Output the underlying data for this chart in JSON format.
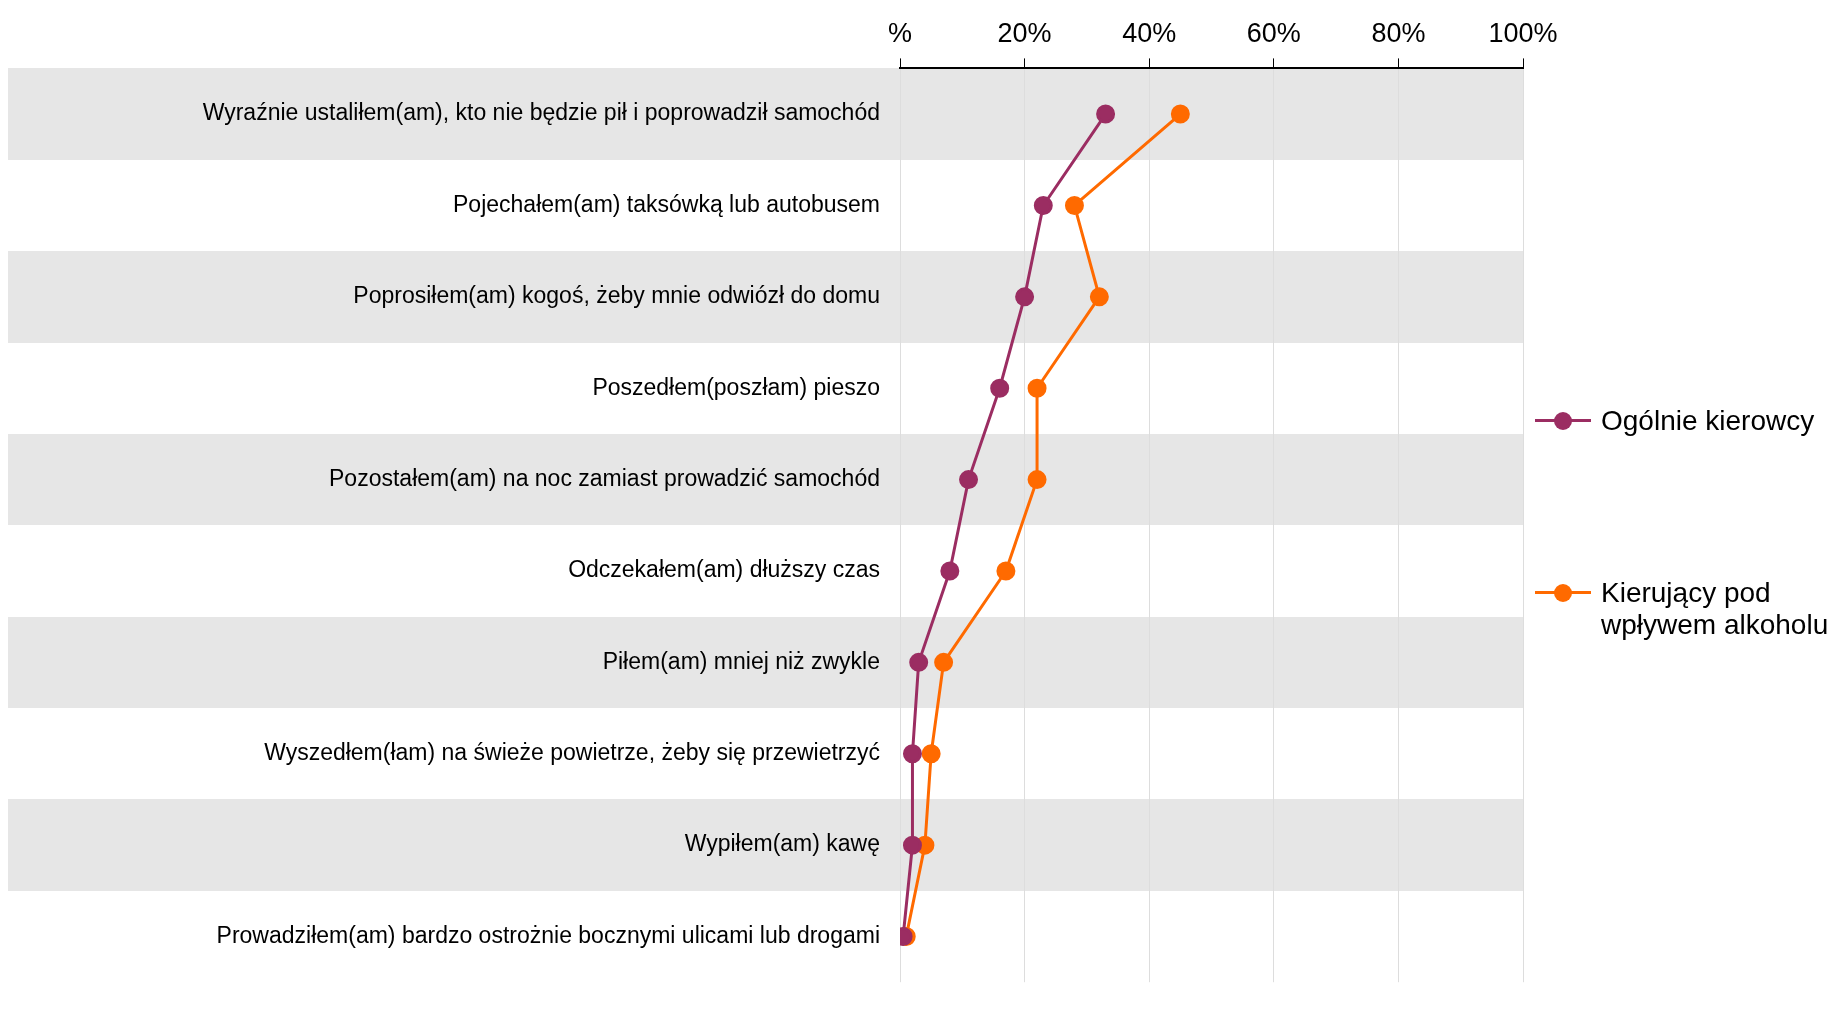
{
  "chart_data": {
    "type": "line",
    "orientation": "horizontal",
    "categories": [
      "Wyraźnie ustaliłem(am), kto nie będzie pił i poprowadził samochód",
      "Pojechałem(am) taksówką lub autobusem",
      "Poprosiłem(am) kogoś, żeby mnie odwiózł do domu",
      "Poszedłem(poszłam) pieszo",
      "Pozostałem(am) na noc zamiast prowadzić samochód",
      "Odczekałem(am) dłuższy czas",
      "Piłem(am) mniej niż zwykle",
      "Wyszedłem(łam) na świeże powietrze, żeby się przewietrzyć",
      "Wypiłem(am) kawę",
      "Prowadziłem(am) bardzo ostrożnie bocznymi ulicami lub drogami"
    ],
    "series": [
      {
        "name": "Ogólnie kierowcy",
        "color": "#9b2d62",
        "values": [
          33,
          23,
          20,
          16,
          11,
          8,
          3,
          2,
          2,
          0.5
        ]
      },
      {
        "name": "Kierujący pod wpływem alkoholu",
        "color": "#ff6a00",
        "values": [
          45,
          28,
          32,
          22,
          22,
          17,
          7,
          5,
          4,
          1
        ]
      }
    ],
    "xlim": [
      0,
      100
    ],
    "xticks": [
      {
        "value": 0,
        "label": "%"
      },
      {
        "value": 20,
        "label": "20%"
      },
      {
        "value": 40,
        "label": "40%"
      },
      {
        "value": 60,
        "label": "60%"
      },
      {
        "value": 80,
        "label": "80%"
      },
      {
        "value": 100,
        "label": "100%"
      }
    ],
    "grid": "x",
    "legend": "right",
    "marker": "circle",
    "line_style": "solid"
  }
}
